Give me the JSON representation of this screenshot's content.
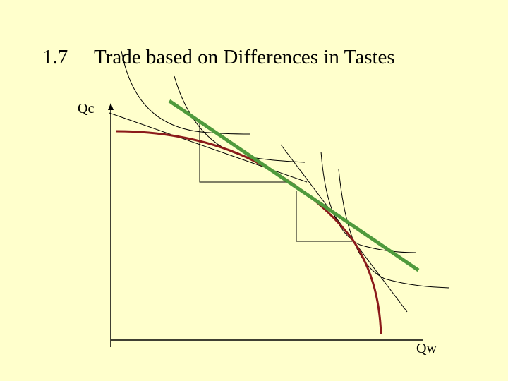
{
  "slide": {
    "number": "1.7",
    "title": "Trade based on Differences in Tastes"
  },
  "diagram": {
    "y_axis_label": "Qc",
    "x_axis_label": "Qw"
  }
}
